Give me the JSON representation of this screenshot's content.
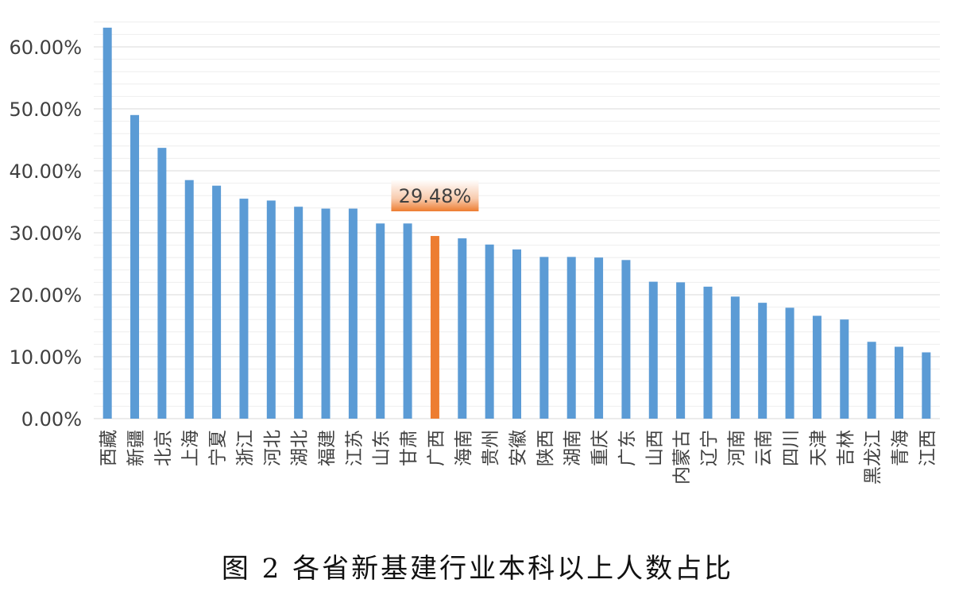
{
  "caption": "图 2 各省新基建行业本科以上人数占比",
  "chart_data": {
    "type": "bar",
    "categories": [
      "西藏",
      "新疆",
      "北京",
      "上海",
      "宁夏",
      "浙江",
      "河北",
      "湖北",
      "福建",
      "江苏",
      "山东",
      "甘肃",
      "广西",
      "海南",
      "贵州",
      "安徽",
      "陕西",
      "湖南",
      "重庆",
      "广东",
      "山西",
      "内蒙古",
      "辽宁",
      "河南",
      "云南",
      "四川",
      "天津",
      "吉林",
      "黑龙江",
      "青海",
      "江西"
    ],
    "values": [
      0.631,
      0.49,
      0.437,
      0.385,
      0.376,
      0.355,
      0.352,
      0.342,
      0.339,
      0.339,
      0.315,
      0.315,
      0.2948,
      0.291,
      0.281,
      0.273,
      0.261,
      0.261,
      0.26,
      0.256,
      0.221,
      0.22,
      0.213,
      0.197,
      0.187,
      0.179,
      0.166,
      0.16,
      0.124,
      0.116,
      0.107
    ],
    "ylim": [
      0,
      0.65
    ],
    "y_ticks": [
      "0.00%",
      "10.00%",
      "20.00%",
      "30.00%",
      "40.00%",
      "50.00%",
      "60.00%"
    ],
    "y_tick_values": [
      0,
      0.1,
      0.2,
      0.3,
      0.4,
      0.5,
      0.6
    ],
    "grid": true,
    "bar_color": "#5B9BD5",
    "highlight": {
      "category": "广西",
      "color": "#ED7D31",
      "label": "29.48%"
    },
    "callout_gradient": [
      "#FFFFFF",
      "#F8CBAD",
      "#ED7D31"
    ]
  }
}
